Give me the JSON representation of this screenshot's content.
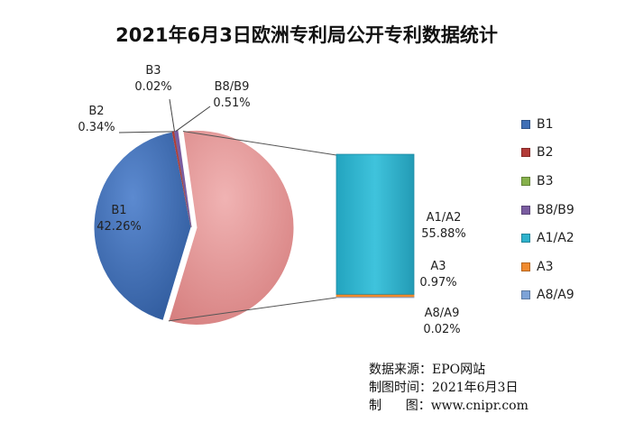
{
  "chart_data": {
    "type": "pie",
    "title": "2021年6月3日欧洲专利局公开专利数据统计",
    "pie_of_bar": true,
    "slices": [
      {
        "name": "B1",
        "label": "B1",
        "value_label": "42.26%",
        "value": 42.26,
        "color": "#3f6fb6"
      },
      {
        "name": "B2",
        "label": "B2",
        "value_label": "0.34%",
        "value": 0.34,
        "color": "#b23a37"
      },
      {
        "name": "B3",
        "label": "B3",
        "value_label": "0.02%",
        "value": 0.02,
        "color": "#86b14b"
      },
      {
        "name": "B8/B9",
        "label": "B8/B9",
        "value_label": "0.51%",
        "value": 0.51,
        "color": "#7a5ca0"
      },
      {
        "name": "A1/A2",
        "label": "A1/A2",
        "value_label": "55.88%",
        "value": 55.88,
        "color": "#2eb2cc"
      },
      {
        "name": "A3",
        "label": "A3",
        "value_label": "0.97%",
        "value": 0.97,
        "color": "#f08a2e"
      },
      {
        "name": "A8/A9",
        "label": "A8/A9",
        "value_label": "0.02%",
        "value": 0.02,
        "color": "#7da3d7"
      }
    ],
    "other_color": "#e39a9a",
    "bar_series": [
      "A1/A2",
      "A3",
      "A8/A9"
    ],
    "legend_position": "right"
  },
  "source": {
    "line1": "数据来源：EPO网站",
    "line2": "制图时间：2021年6月3日",
    "line3": "制      图：www.cnipr.com"
  }
}
